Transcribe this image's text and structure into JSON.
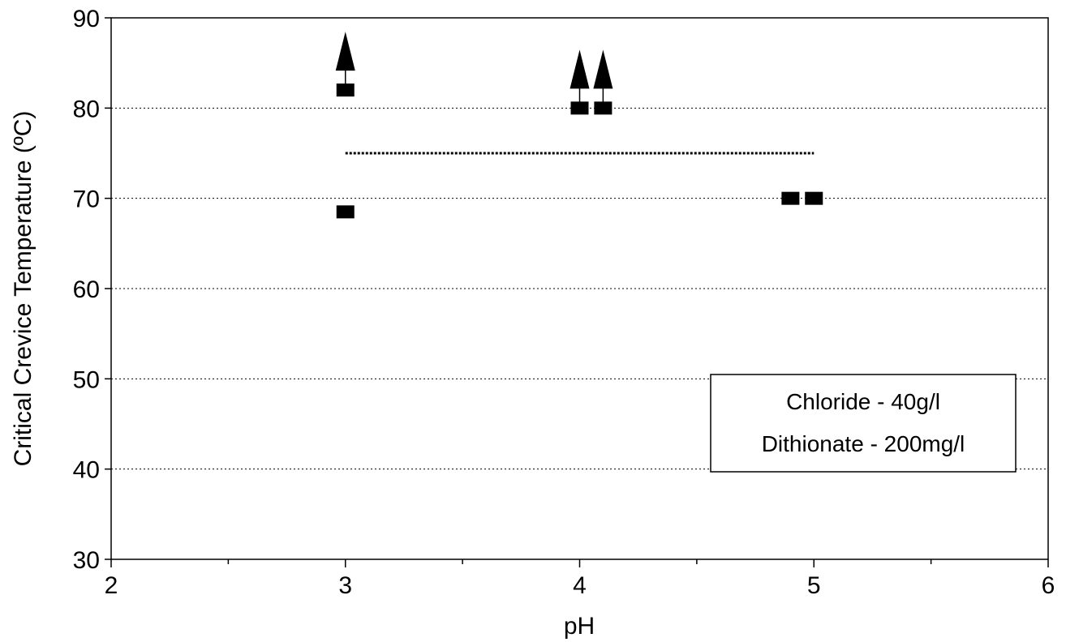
{
  "chart_data": {
    "type": "scatter",
    "title": "",
    "xlabel": "pH",
    "ylabel": "Critical Crevice Temperature (ºC)",
    "xlim": [
      2,
      6
    ],
    "ylim": [
      30,
      90
    ],
    "x_ticks": [
      "2",
      "3",
      "4",
      "5",
      "6"
    ],
    "y_ticks": [
      "30",
      "40",
      "50",
      "60",
      "70",
      "80",
      "90"
    ],
    "grid": "horizontal-dotted",
    "series": [
      {
        "points": [
          {
            "x": 3.0,
            "y": 82,
            "arrow_up": true
          },
          {
            "x": 3.0,
            "y": 68.5,
            "arrow_up": false
          },
          {
            "x": 4.0,
            "y": 80,
            "arrow_up": true
          },
          {
            "x": 4.1,
            "y": 80,
            "arrow_up": true
          },
          {
            "x": 4.9,
            "y": 70,
            "arrow_up": false
          },
          {
            "x": 5.0,
            "y": 70,
            "arrow_up": false
          }
        ]
      }
    ],
    "reference_line": {
      "x_start": 3.0,
      "x_end": 5.0,
      "y": 75,
      "style": "dotted"
    },
    "annotation": {
      "lines": [
        "Chloride - 40g/l",
        "Dithionate - 200mg/l"
      ],
      "placement": "lower-right"
    }
  }
}
